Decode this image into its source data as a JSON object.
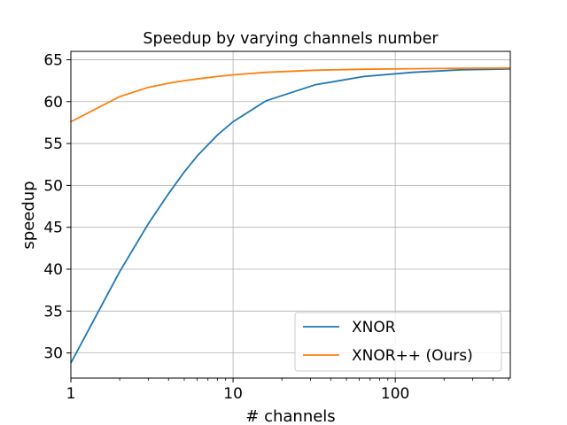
{
  "chart_data": {
    "type": "line",
    "title": "Speedup by varying channels number",
    "xlabel": "# channels",
    "ylabel": "speedup",
    "xscale": "log",
    "xlim": [
      1,
      512
    ],
    "ylim": [
      27,
      66
    ],
    "xticks": [
      1,
      10,
      100
    ],
    "xtick_labels": [
      "1",
      "10",
      "100"
    ],
    "yticks": [
      30,
      35,
      40,
      45,
      50,
      55,
      60,
      65
    ],
    "ytick_labels": [
      "30",
      "35",
      "40",
      "45",
      "50",
      "55",
      "60",
      "65"
    ],
    "grid": true,
    "legend_position": "lower-right",
    "x": [
      1,
      2,
      3,
      4,
      5,
      6,
      8,
      10,
      16,
      32,
      64,
      128,
      256,
      512
    ],
    "series": [
      {
        "name": "XNOR",
        "color": "#1f77b4",
        "values": [
          28.8,
          39.7,
          45.4,
          49.0,
          51.6,
          53.5,
          56.0,
          57.6,
          60.1,
          62.0,
          63.0,
          63.5,
          63.8,
          63.9
        ]
      },
      {
        "name": "XNOR++ (Ours)",
        "color": "#ff7f0e",
        "values": [
          57.6,
          60.6,
          61.7,
          62.2,
          62.5,
          62.7,
          63.0,
          63.2,
          63.5,
          63.75,
          63.87,
          63.93,
          63.97,
          64.0
        ]
      }
    ]
  }
}
